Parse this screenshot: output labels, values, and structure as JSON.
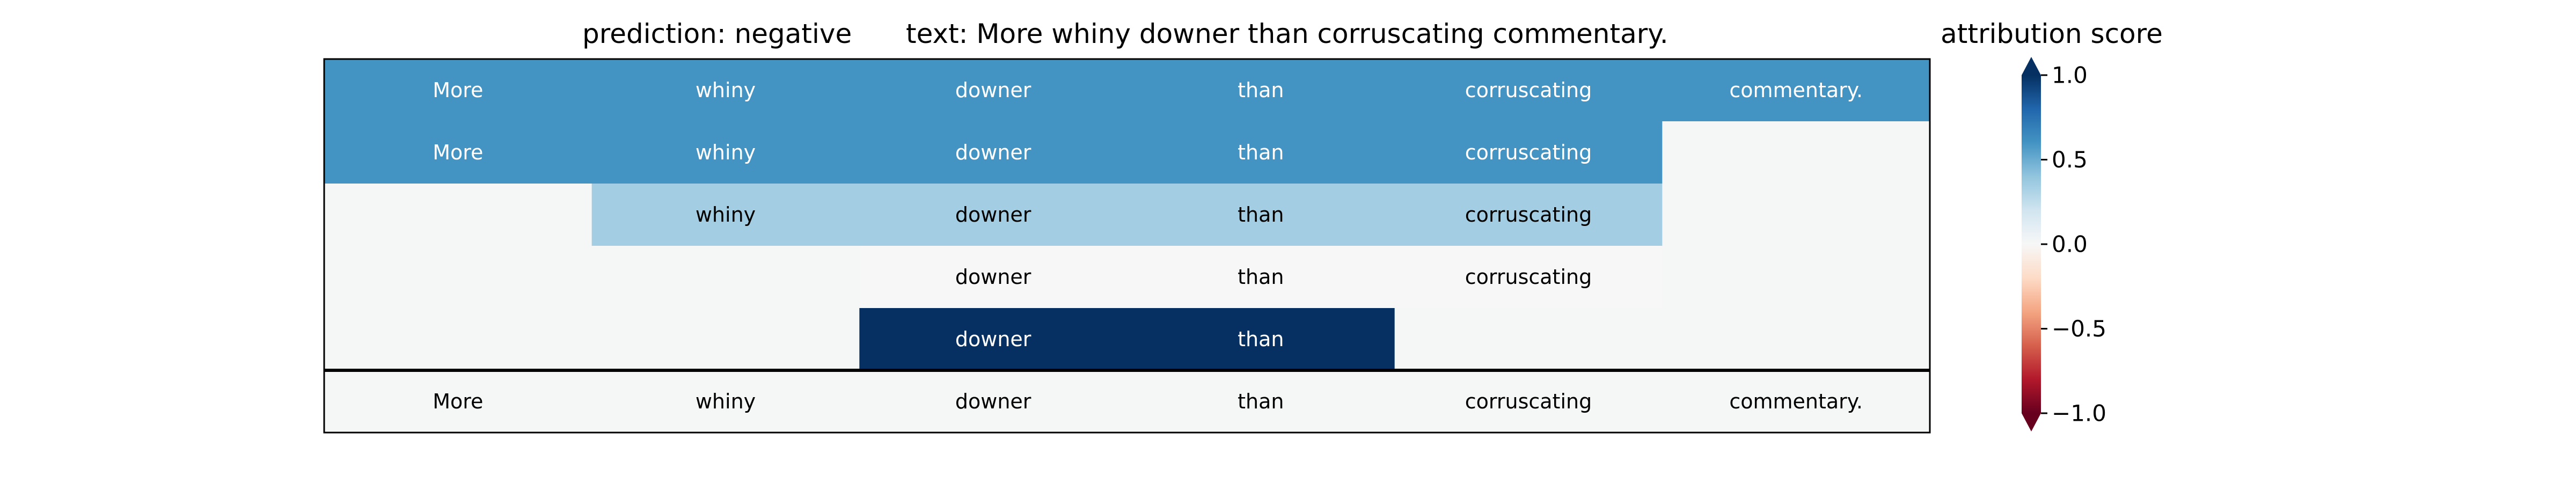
{
  "chart_data": {
    "type": "heatmap",
    "title_prediction": "prediction:  negative",
    "title_text": "text:  More whiny downer than corruscating commentary.",
    "colorbar_label": "attribution score",
    "colorbar_ticks": [
      "1.0",
      "0.5",
      "0.0",
      "−0.5",
      "−1.0"
    ],
    "colorbar_tick_values": [
      1.0,
      0.5,
      0.0,
      -0.5,
      -1.0
    ],
    "vmin": -1.0,
    "vmax": 1.0,
    "colormap": "RdBu",
    "tokens": [
      "More",
      "whiny",
      "downer",
      "than",
      "corruscating",
      "commentary."
    ],
    "rows": [
      {
        "start": 0,
        "end": 5,
        "value": 0.6
      },
      {
        "start": 0,
        "end": 4,
        "value": 0.6
      },
      {
        "start": 1,
        "end": 4,
        "value": 0.35
      },
      {
        "start": 2,
        "end": 4,
        "value": 0.0
      },
      {
        "start": 2,
        "end": 3,
        "value": 1.0
      }
    ],
    "baseline_row": {
      "start": 0,
      "end": 5,
      "value": 0.0
    },
    "background_color": "#f5f6f6"
  }
}
